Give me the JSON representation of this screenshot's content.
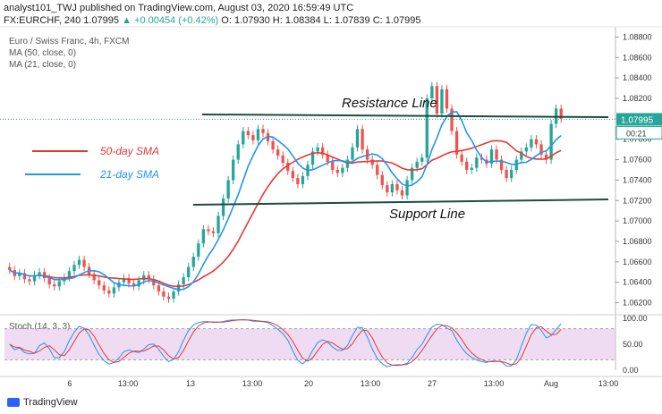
{
  "header": {
    "publisher_line": "analyst101_TWJ published on TradingView.com, August 03, 2020 16:59:49 UTC",
    "symbol": "FX:EURCHF, 240",
    "last": "1.07995",
    "change": "▲ +0.00454 (+0.42%)",
    "ohlc": "O: 1.07930 H: 1.08384 L: 1.07839 C: 1.07995"
  },
  "chart_info": {
    "title": "Euro / Swiss Franc, 4h, FXCM",
    "ma50": "MA (50, close, 0)",
    "ma21": "MA (21, close, 0)",
    "stoch": "Stoch (14, 3, 3)"
  },
  "annotations": {
    "resistance": "Resistance Line",
    "support": "Support Line",
    "sma50": "50-day SMA",
    "sma21": "21-day SMA"
  },
  "price_tag": {
    "value": "1.07995",
    "countdown": "00:21"
  },
  "brand": "TradingView",
  "colors": {
    "up": "#26a69a",
    "down": "#ef5350",
    "ma50": "#e53935",
    "ma21": "#2196f3",
    "stoch_band": "#e1bee7",
    "line": "#1b4d3e"
  },
  "chart_data": {
    "type": "candlestick",
    "ylim": [
      1.061,
      1.089
    ],
    "y_ticks": [
      "1.08800",
      "1.08600",
      "1.08400",
      "1.08200",
      "1.08000",
      "1.07800",
      "1.07600",
      "1.07400",
      "1.07200",
      "1.07000",
      "1.06800",
      "1.06600",
      "1.06400",
      "1.06200"
    ],
    "x_ticks": [
      "6",
      "13:00",
      "13",
      "13:00",
      "20",
      "13:00",
      "27",
      "13:00",
      "Aug",
      "13:00"
    ],
    "stoch_ticks": [
      "100.00",
      "50.00",
      "0.00"
    ],
    "stoch_ylim": [
      0,
      100
    ],
    "close": [
      1.0652,
      1.0646,
      1.0649,
      1.0643,
      1.0641,
      1.0647,
      1.065,
      1.0644,
      1.0638,
      1.0636,
      1.0641,
      1.0645,
      1.0651,
      1.0657,
      1.0662,
      1.0655,
      1.0648,
      1.0642,
      1.0637,
      1.0632,
      1.0629,
      1.0635,
      1.064,
      1.0644,
      1.0639,
      1.0636,
      1.0642,
      1.0647,
      1.0643,
      1.0637,
      1.0631,
      1.0626,
      1.0624,
      1.0631,
      1.0638,
      1.0645,
      1.0655,
      1.0665,
      1.0678,
      1.0692,
      1.069,
      1.0688,
      1.0705,
      1.0722,
      1.074,
      1.076,
      1.0775,
      1.0788,
      1.0784,
      1.0779,
      1.079,
      1.0786,
      1.0778,
      1.077,
      1.0764,
      1.0757,
      1.0749,
      1.0742,
      1.0736,
      1.0744,
      1.0755,
      1.0768,
      1.0772,
      1.0765,
      1.0758,
      1.075,
      1.0747,
      1.0752,
      1.076,
      1.0772,
      1.079,
      1.077,
      1.076,
      1.0755,
      1.0745,
      1.0735,
      1.0728,
      1.0736,
      1.073,
      1.0725,
      1.074,
      1.0752,
      1.0758,
      1.0762,
      1.082,
      1.0832,
      1.0805,
      1.0829,
      1.081,
      1.0788,
      1.0765,
      1.0758,
      1.075,
      1.0752,
      1.0762,
      1.076,
      1.0756,
      1.077,
      1.076,
      1.075,
      1.0742,
      1.075,
      1.076,
      1.0768,
      1.0772,
      1.078,
      1.0775,
      1.0765,
      1.076,
      1.0795,
      1.081,
      1.08
    ]
  }
}
